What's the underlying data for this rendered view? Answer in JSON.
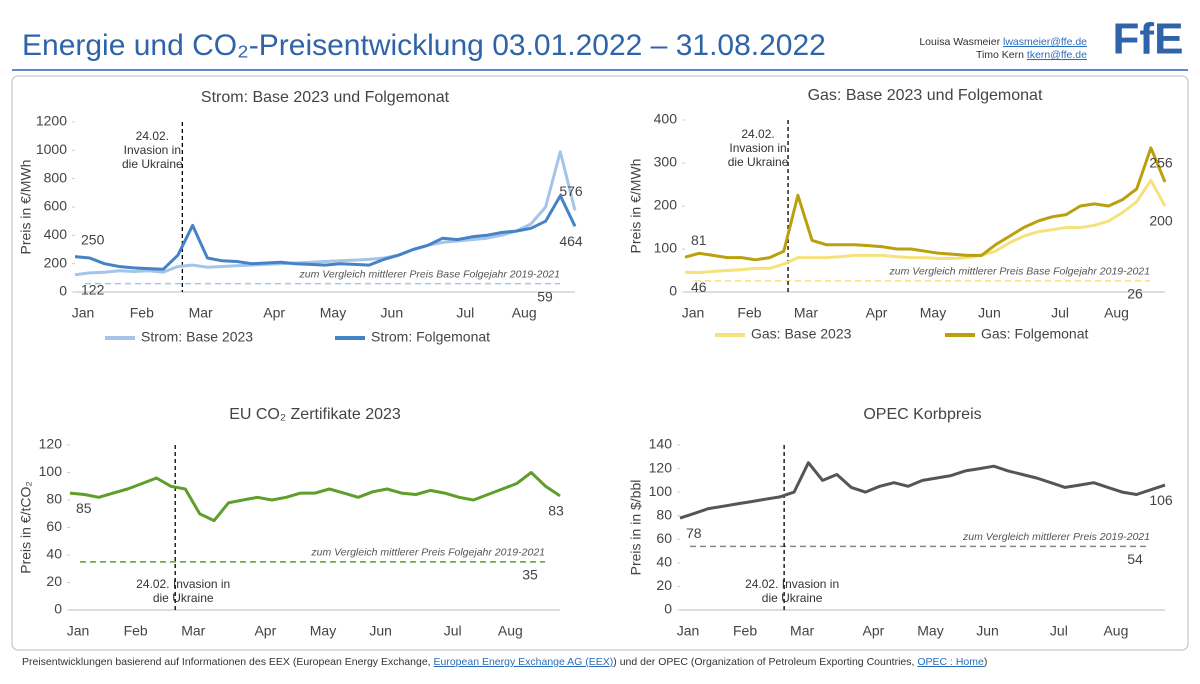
{
  "header": {
    "title": "Energie und CO₂-Preisentwicklung 03.01.2022 – 31.08.2022",
    "authors": [
      {
        "name": "Louisa Wasmeier",
        "email": "lwasmeier@ffe.de"
      },
      {
        "name": "Timo Kern",
        "email": "tkern@ffe.de"
      }
    ],
    "logo": "FfE"
  },
  "footer": {
    "parts": [
      "Preisentwicklungen basierend auf Informationen des EEX (European Energy Exchange, ",
      "European Energy Exchange AG (EEX)",
      ") und der OPEC (Organization of Petroleum Exporting Countries, ",
      "OPEC : Home",
      ")"
    ]
  },
  "chart_data": [
    {
      "type": "line",
      "title": "Strom: Base 2023 und Folgemonat",
      "y_label": "Preis in €/MWh",
      "categories": [
        "Jan",
        null,
        null,
        null,
        "Feb",
        null,
        null,
        null,
        "Mar",
        null,
        null,
        null,
        null,
        "Apr",
        null,
        null,
        null,
        "May",
        null,
        null,
        null,
        "Jun",
        null,
        null,
        null,
        null,
        "Jul",
        null,
        null,
        null,
        "Aug",
        null,
        null,
        null,
        null
      ],
      "series": [
        {
          "name": "Strom: Base 2023",
          "color": "#a4c5e8",
          "values": [
            122,
            135,
            140,
            150,
            145,
            150,
            140,
            180,
            190,
            175,
            180,
            185,
            190,
            195,
            200,
            205,
            210,
            215,
            220,
            225,
            230,
            240,
            260,
            300,
            330,
            350,
            360,
            370,
            380,
            400,
            430,
            480,
            600,
            990,
            576
          ]
        },
        {
          "name": "Strom: Folgemonat",
          "color": "#4583c6",
          "values": [
            250,
            240,
            200,
            180,
            170,
            165,
            160,
            260,
            470,
            240,
            220,
            215,
            200,
            205,
            210,
            200,
            195,
            190,
            200,
            195,
            190,
            230,
            260,
            300,
            330,
            380,
            370,
            390,
            400,
            420,
            430,
            450,
            500,
            680,
            464
          ]
        }
      ],
      "ylim": [
        0,
        1200
      ],
      "yticks": [
        0,
        200,
        400,
        600,
        800,
        1000,
        1200
      ],
      "annotation": [
        "24.02.",
        "Invasion in",
        "die Ukraine"
      ],
      "reference": {
        "label": "zum Vergleich mittlerer Preis Base Folgejahr 2019-2021",
        "value": 59,
        "color": "#a4c5e8"
      }
    },
    {
      "type": "line",
      "title": "Gas: Base 2023 und Folgemonat",
      "y_label": "Preis in €/MWh",
      "categories": [
        "Jan",
        null,
        null,
        null,
        "Feb",
        null,
        null,
        null,
        "Mar",
        null,
        null,
        null,
        null,
        "Apr",
        null,
        null,
        null,
        "May",
        null,
        null,
        null,
        "Jun",
        null,
        null,
        null,
        null,
        "Jul",
        null,
        null,
        null,
        "Aug",
        null,
        null,
        null,
        null
      ],
      "series": [
        {
          "name": "Gas: Base 2023",
          "color": "#f5e27c",
          "values": [
            46,
            45,
            48,
            50,
            52,
            55,
            55,
            65,
            80,
            80,
            80,
            82,
            85,
            85,
            85,
            82,
            80,
            80,
            78,
            78,
            80,
            85,
            95,
            115,
            130,
            140,
            145,
            150,
            150,
            155,
            165,
            185,
            210,
            260,
            200
          ]
        },
        {
          "name": "Gas: Folgemonat",
          "color": "#b9a00c",
          "values": [
            81,
            90,
            85,
            80,
            80,
            75,
            80,
            95,
            225,
            120,
            110,
            110,
            110,
            108,
            105,
            100,
            100,
            95,
            90,
            88,
            85,
            85,
            110,
            130,
            150,
            165,
            175,
            180,
            200,
            205,
            200,
            215,
            240,
            335,
            256
          ]
        }
      ],
      "ylim": [
        0,
        400
      ],
      "yticks": [
        0,
        100,
        200,
        300,
        400
      ],
      "annotation": [
        "24.02.",
        "Invasion in",
        "die Ukraine"
      ],
      "reference": {
        "label": "zum Vergleich mittlerer Preis Base Folgejahr 2019-2021",
        "value": 26,
        "color": "#f5e27c"
      }
    },
    {
      "type": "line",
      "title": "EU CO₂ Zertifikate 2023",
      "y_label": "Preis in €/tCO₂",
      "categories": [
        "Jan",
        null,
        null,
        null,
        "Feb",
        null,
        null,
        null,
        "Mar",
        null,
        null,
        null,
        null,
        "Apr",
        null,
        null,
        null,
        "May",
        null,
        null,
        null,
        "Jun",
        null,
        null,
        null,
        null,
        "Jul",
        null,
        null,
        null,
        "Aug",
        null,
        null,
        null,
        null
      ],
      "series": [
        {
          "color": "#5e9e2a",
          "values": [
            85,
            84,
            82,
            85,
            88,
            92,
            96,
            90,
            88,
            70,
            65,
            78,
            80,
            82,
            80,
            82,
            85,
            85,
            88,
            85,
            82,
            86,
            88,
            85,
            84,
            87,
            85,
            82,
            80,
            84,
            88,
            92,
            100,
            90,
            83
          ]
        }
      ],
      "ylim": [
        0,
        120
      ],
      "yticks": [
        0,
        20,
        40,
        60,
        80,
        100,
        120
      ],
      "annotation": [
        "24.02. Invasion in",
        "die Ukraine"
      ],
      "reference": {
        "label": "zum Vergleich mittlerer Preis Folgejahr 2019-2021",
        "value": 35,
        "color": "#5e9e2a"
      }
    },
    {
      "type": "line",
      "title": "OPEC Korbpreis",
      "y_label": "Preis in in $/bbl",
      "categories": [
        "Jan",
        null,
        null,
        null,
        "Feb",
        null,
        null,
        null,
        "Mar",
        null,
        null,
        null,
        null,
        "Apr",
        null,
        null,
        null,
        "May",
        null,
        null,
        null,
        "Jun",
        null,
        null,
        null,
        null,
        "Jul",
        null,
        null,
        null,
        "Aug",
        null,
        null,
        null,
        null
      ],
      "series": [
        {
          "color": "#555555",
          "values": [
            78,
            82,
            86,
            88,
            90,
            92,
            94,
            96,
            100,
            125,
            110,
            115,
            104,
            100,
            105,
            108,
            105,
            110,
            112,
            114,
            118,
            120,
            122,
            118,
            115,
            112,
            108,
            104,
            106,
            108,
            104,
            100,
            98,
            102,
            106
          ]
        }
      ],
      "ylim": [
        0,
        140
      ],
      "yticks": [
        0,
        20,
        40,
        60,
        80,
        100,
        120,
        140
      ],
      "annotation": [
        "24.02. Invasion in",
        "die Ukraine"
      ],
      "reference": {
        "label": "zum Vergleich mittlerer Preis 2019-2021",
        "value": 54,
        "color": "#888888"
      }
    }
  ]
}
